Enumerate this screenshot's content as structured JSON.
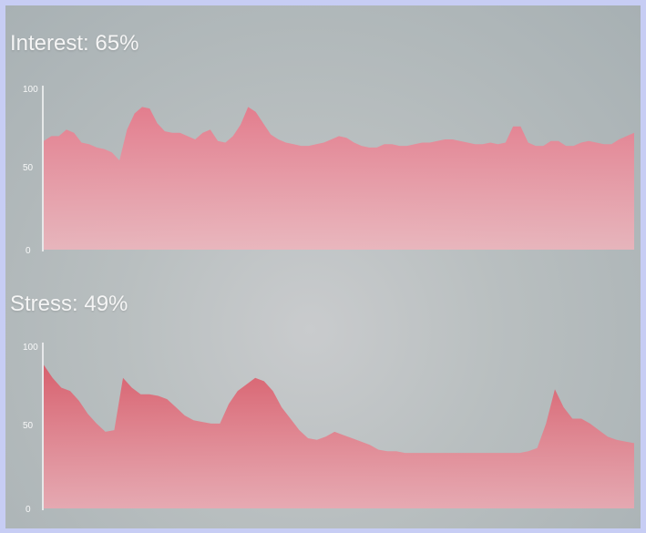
{
  "panels": [
    {
      "title": "Interest: 65%",
      "ticks": [
        "100",
        "50",
        "0"
      ],
      "chart_data": {
        "type": "area",
        "title": "Interest: 65%",
        "ylim": [
          0,
          100
        ],
        "yticks": [
          0,
          50,
          100
        ],
        "color": "#e8808f",
        "values": [
          67,
          70,
          70,
          74,
          72,
          66,
          65,
          63,
          62,
          60,
          55,
          74,
          84,
          88,
          87,
          78,
          73,
          72,
          72,
          70,
          68,
          72,
          74,
          67,
          66,
          70,
          77,
          88,
          85,
          78,
          71,
          68,
          66,
          65,
          64,
          64,
          65,
          66,
          68,
          70,
          69,
          66,
          64,
          63,
          63,
          65,
          65,
          64,
          64,
          65,
          66,
          66,
          67,
          68,
          68,
          67,
          66,
          65,
          65,
          66,
          65,
          66,
          76,
          76,
          66,
          64,
          64,
          67,
          67,
          64,
          64,
          66,
          67,
          66,
          65,
          65,
          68,
          70,
          72
        ]
      }
    },
    {
      "title": "Stress: 49%",
      "ticks": [
        "100",
        "50",
        "0"
      ],
      "chart_data": {
        "type": "area",
        "title": "Stress: 49%",
        "ylim": [
          0,
          100
        ],
        "yticks": [
          0,
          50,
          100
        ],
        "color": "#dc6471",
        "values": [
          88,
          80,
          74,
          72,
          66,
          58,
          52,
          47,
          48,
          80,
          74,
          70,
          70,
          69,
          67,
          62,
          57,
          54,
          53,
          52,
          52,
          64,
          72,
          76,
          80,
          78,
          72,
          62,
          55,
          48,
          43,
          42,
          44,
          47,
          45,
          43,
          41,
          39,
          36,
          35,
          35,
          34,
          34,
          34,
          34,
          34,
          34,
          34,
          34,
          34,
          34,
          34,
          34,
          34,
          34,
          35,
          37,
          52,
          73,
          62,
          55,
          55,
          52,
          48,
          44,
          42,
          41,
          40
        ]
      }
    }
  ]
}
